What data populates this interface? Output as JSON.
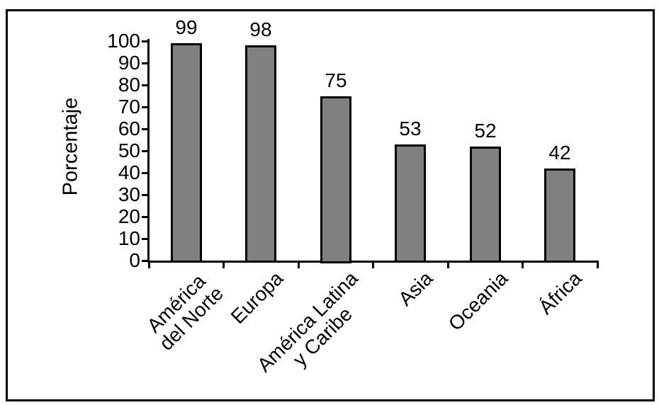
{
  "chart_data": {
    "type": "bar",
    "title": "",
    "xlabel": "",
    "ylabel": "Porcentaje",
    "categories": [
      "América del Norte",
      "Europa",
      "América Latina y Caribe",
      "Asia",
      "Oceania",
      "África"
    ],
    "category_lines": [
      [
        "América",
        "del Norte"
      ],
      [
        "Europa"
      ],
      [
        "América Latina",
        "y Caribe"
      ],
      [
        "Asia"
      ],
      [
        "Oceania"
      ],
      [
        "África"
      ]
    ],
    "values": [
      99,
      98,
      75,
      53,
      52,
      42
    ],
    "bar_value_labels": [
      "99",
      "98",
      "75",
      "53",
      "52",
      "42"
    ],
    "ylim": [
      0,
      100
    ],
    "yticks": [
      0,
      10,
      20,
      30,
      40,
      50,
      60,
      70,
      80,
      90,
      100
    ],
    "grid": false,
    "legend": false,
    "bar_fill_color": "#808080",
    "bar_border_color": "#000000",
    "axis_color": "#000000",
    "frame_color": "#000000"
  }
}
